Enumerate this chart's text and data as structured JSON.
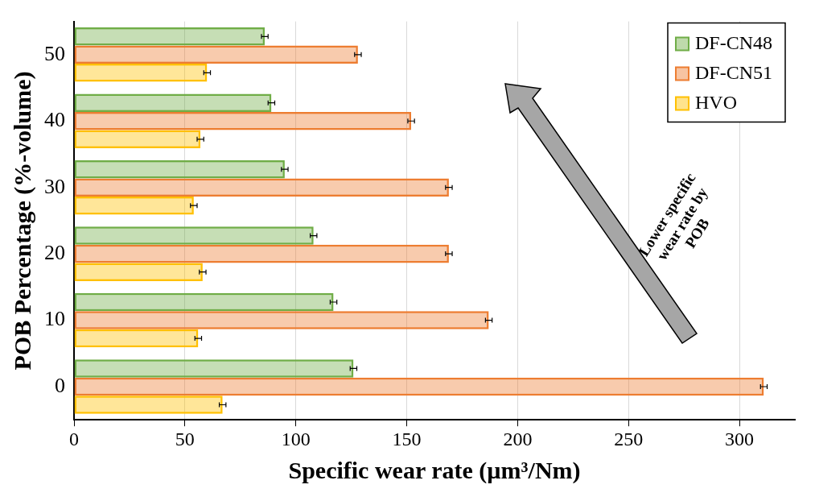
{
  "chart_data": {
    "type": "bar",
    "orientation": "horizontal",
    "xlabel": "Specific wear rate (µm³/Nm)",
    "ylabel": "POB Percentage (%-volume)",
    "categories": [
      "50",
      "40",
      "30",
      "20",
      "10",
      "0"
    ],
    "series": [
      {
        "name": "DF-CN48",
        "color": "#70ad47",
        "values": [
          86,
          89,
          95,
          108,
          117,
          126
        ],
        "errors": [
          1.5,
          1.5,
          1.5,
          1.5,
          1.5,
          1.5
        ]
      },
      {
        "name": "DF-CN51",
        "color": "#ed7d31",
        "values": [
          128,
          152,
          169,
          169,
          187,
          311
        ],
        "errors": [
          1.5,
          1.5,
          1.5,
          1.5,
          1.5,
          1.5
        ]
      },
      {
        "name": "HVO",
        "color": "#ffc000",
        "values": [
          60,
          57,
          54,
          58,
          56,
          67
        ],
        "errors": [
          1.5,
          1.5,
          1.5,
          1.5,
          1.5,
          1.5
        ]
      }
    ],
    "xlim": [
      0,
      325
    ],
    "xticks": [
      0,
      50,
      100,
      150,
      200,
      250,
      300
    ],
    "grid": "x",
    "legend": "top right",
    "annotations": [
      "Lower specific wear rate by POB"
    ]
  }
}
